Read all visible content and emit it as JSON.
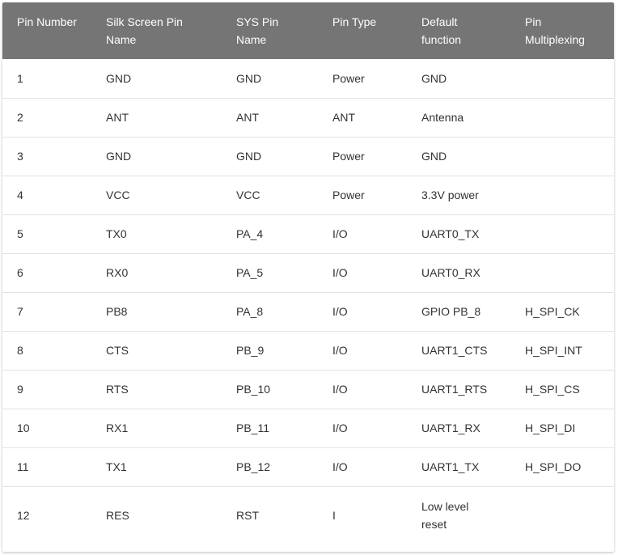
{
  "table": {
    "headers": [
      "Pin Number",
      "Silk Screen Pin Name",
      "SYS Pin Name",
      "Pin Type",
      "Default function",
      "Pin Multiplexing"
    ],
    "rows": [
      [
        "1",
        "GND",
        "GND",
        "Power",
        "GND",
        ""
      ],
      [
        "2",
        "ANT",
        "ANT",
        "ANT",
        "Antenna",
        ""
      ],
      [
        "3",
        "GND",
        "GND",
        "Power",
        "GND",
        ""
      ],
      [
        "4",
        "VCC",
        "VCC",
        "Power",
        "3.3V power",
        ""
      ],
      [
        "5",
        "TX0",
        "PA_4",
        "I/O",
        "UART0_TX",
        ""
      ],
      [
        "6",
        "RX0",
        "PA_5",
        "I/O",
        "UART0_RX",
        ""
      ],
      [
        "7",
        "PB8",
        "PA_8",
        "I/O",
        "GPIO PB_8",
        "H_SPI_CK"
      ],
      [
        "8",
        "CTS",
        "PB_9",
        "I/O",
        "UART1_CTS",
        "H_SPI_INT"
      ],
      [
        "9",
        "RTS",
        "PB_10",
        "I/O",
        "UART1_RTS",
        "H_SPI_CS"
      ],
      [
        "10",
        "RX1",
        "PB_11",
        "I/O",
        "UART1_RX",
        "H_SPI_DI"
      ],
      [
        "11",
        "TX1",
        "PB_12",
        "I/O",
        "UART1_TX",
        "H_SPI_DO"
      ],
      [
        "12",
        "RES",
        "RST",
        "I",
        "Low level reset",
        ""
      ]
    ]
  },
  "colors": {
    "header_bg": "#757575",
    "header_text": "#ffffff",
    "row_divider": "#e3e3e3",
    "body_text": "#333333"
  }
}
